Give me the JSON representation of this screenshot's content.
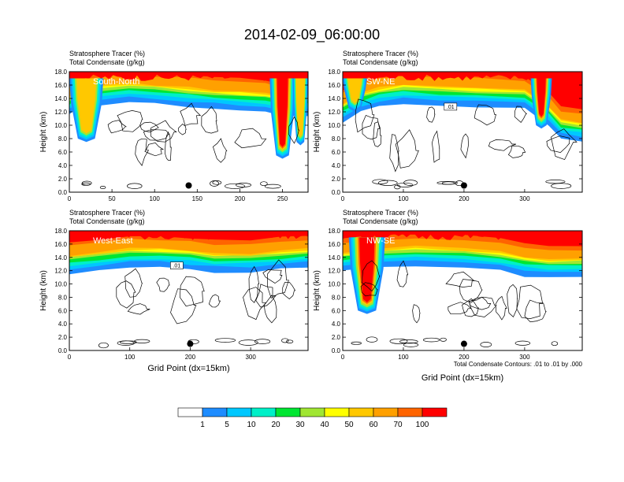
{
  "title": "2014-02-09_06:00:00",
  "colorbar": {
    "levels": [
      "1",
      "5",
      "10",
      "20",
      "30",
      "40",
      "50",
      "60",
      "70",
      "100"
    ],
    "colors": [
      "#ffffff",
      "#1e8cff",
      "#00c8ff",
      "#00f0c8",
      "#00e632",
      "#a0e632",
      "#ffff00",
      "#ffc800",
      "#ffa000",
      "#ff6400",
      "#ff0000"
    ]
  },
  "chart_data": [
    {
      "type": "contour",
      "panel": "South-North",
      "label": "South-North",
      "var1": "Stratosphere Tracer   (%)",
      "var2": "Total Condensate   (g/kg)",
      "ylabel": "Height (km)",
      "xlabel": "",
      "xmax": 280,
      "ylim": [
        0,
        18
      ],
      "xticks": [
        0,
        50,
        100,
        150,
        200,
        250
      ],
      "yticks": [
        0,
        2,
        4,
        6,
        8,
        10,
        12,
        14,
        16,
        18
      ],
      "ytick_labels": [
        "0.0",
        "2.0",
        "4.0",
        "6.0",
        "8.0",
        "10.0",
        "12.0",
        "14.0",
        "16.0",
        "18.0"
      ],
      "tropopause": [
        [
          0,
          14.5
        ],
        [
          10,
          15.5
        ],
        [
          30,
          16
        ],
        [
          70,
          16.5
        ],
        [
          100,
          16.2
        ],
        [
          140,
          15.8
        ],
        [
          170,
          15.5
        ],
        [
          200,
          15.2
        ],
        [
          230,
          15
        ],
        [
          250,
          14.5
        ],
        [
          280,
          14.5
        ]
      ],
      "intrusions": [
        {
          "x": [
            0,
            40
          ],
          "bottom": 7.5,
          "peak": 25
        },
        {
          "x": [
            235,
            265
          ],
          "bottom": 5,
          "peak": 70
        },
        {
          "x": [
            262,
            280
          ],
          "bottom": 7,
          "peak": 30
        }
      ],
      "marker": {
        "x": 140,
        "y": 1.0
      },
      "contour_note": ""
    },
    {
      "type": "contour",
      "panel": "SW-NE",
      "label": "SW-NE",
      "var1": "Stratosphere Tracer   (%)",
      "var2": "Total Condensate   (g/kg)",
      "ylabel": "Height (km)",
      "xlabel": "",
      "xmax": 395,
      "ylim": [
        0,
        18
      ],
      "xticks": [
        0,
        100,
        200,
        300
      ],
      "yticks": [
        0,
        2,
        4,
        6,
        8,
        10,
        12,
        14,
        16,
        18
      ],
      "ytick_labels": [
        "0.0",
        "2.0",
        "4.0",
        "6.0",
        "8.0",
        "10.0",
        "12.0",
        "14.0",
        "16.0",
        "18.0"
      ],
      "tropopause": [
        [
          0,
          13.5
        ],
        [
          30,
          15
        ],
        [
          60,
          15.8
        ],
        [
          100,
          16.3
        ],
        [
          160,
          16
        ],
        [
          220,
          15.8
        ],
        [
          300,
          15.5
        ],
        [
          340,
          13
        ],
        [
          360,
          11
        ],
        [
          395,
          10.5
        ]
      ],
      "intrusions": [
        {
          "x": [
            0,
            40
          ],
          "bottom": 12,
          "peak": 30
        },
        {
          "x": [
            310,
            345
          ],
          "bottom": 9.5,
          "peak": 70
        }
      ],
      "marker": {
        "x": 200,
        "y": 1.0
      },
      "contour_note": ".01"
    },
    {
      "type": "contour",
      "panel": "West-East",
      "label": "West-East",
      "var1": "Stratosphere Tracer   (%)",
      "var2": "Total Condensate   (g/kg)",
      "ylabel": "Height (km)",
      "xlabel": "Grid Point (dx=15km)",
      "xmax": 395,
      "ylim": [
        0,
        18
      ],
      "xticks": [
        0,
        100,
        200,
        300
      ],
      "yticks": [
        0,
        2,
        4,
        6,
        8,
        10,
        12,
        14,
        16,
        18
      ],
      "ytick_labels": [
        "0.0",
        "2.0",
        "4.0",
        "6.0",
        "8.0",
        "10.0",
        "12.0",
        "14.0",
        "16.0",
        "18.0"
      ],
      "tropopause": [
        [
          0,
          14.5
        ],
        [
          50,
          15
        ],
        [
          100,
          15.5
        ],
        [
          150,
          15.5
        ],
        [
          200,
          15.2
        ],
        [
          240,
          14.8
        ],
        [
          300,
          14.8
        ],
        [
          350,
          15.2
        ],
        [
          395,
          15.5
        ]
      ],
      "intrusions": [],
      "marker": {
        "x": 200,
        "y": 1.0
      },
      "contour_note": ".01"
    },
    {
      "type": "contour",
      "panel": "NW-SE",
      "label": "NW-SE",
      "var1": "Stratosphere Tracer   (%)",
      "var2": "Total Condensate   (g/kg)",
      "ylabel": "Height (km)",
      "xlabel": "Grid Point (dx=15km)",
      "xmax": 395,
      "ylim": [
        0,
        18
      ],
      "xticks": [
        0,
        100,
        200,
        300
      ],
      "yticks": [
        0,
        2,
        4,
        6,
        8,
        10,
        12,
        14,
        16,
        18
      ],
      "ytick_labels": [
        "0.0",
        "2.0",
        "4.0",
        "6.0",
        "8.0",
        "10.0",
        "12.0",
        "14.0",
        "16.0",
        "18.0"
      ],
      "tropopause": [
        [
          0,
          15
        ],
        [
          60,
          15.5
        ],
        [
          120,
          15.8
        ],
        [
          200,
          15.5
        ],
        [
          260,
          15
        ],
        [
          300,
          14.2
        ],
        [
          340,
          14
        ],
        [
          395,
          14
        ]
      ],
      "intrusions": [
        {
          "x": [
            10,
            70
          ],
          "bottom": 5.5,
          "peak": 90
        }
      ],
      "marker": {
        "x": 200,
        "y": 1.0
      },
      "contour_note": "Total Condensate Contours: .01 to .01 by .000"
    }
  ]
}
